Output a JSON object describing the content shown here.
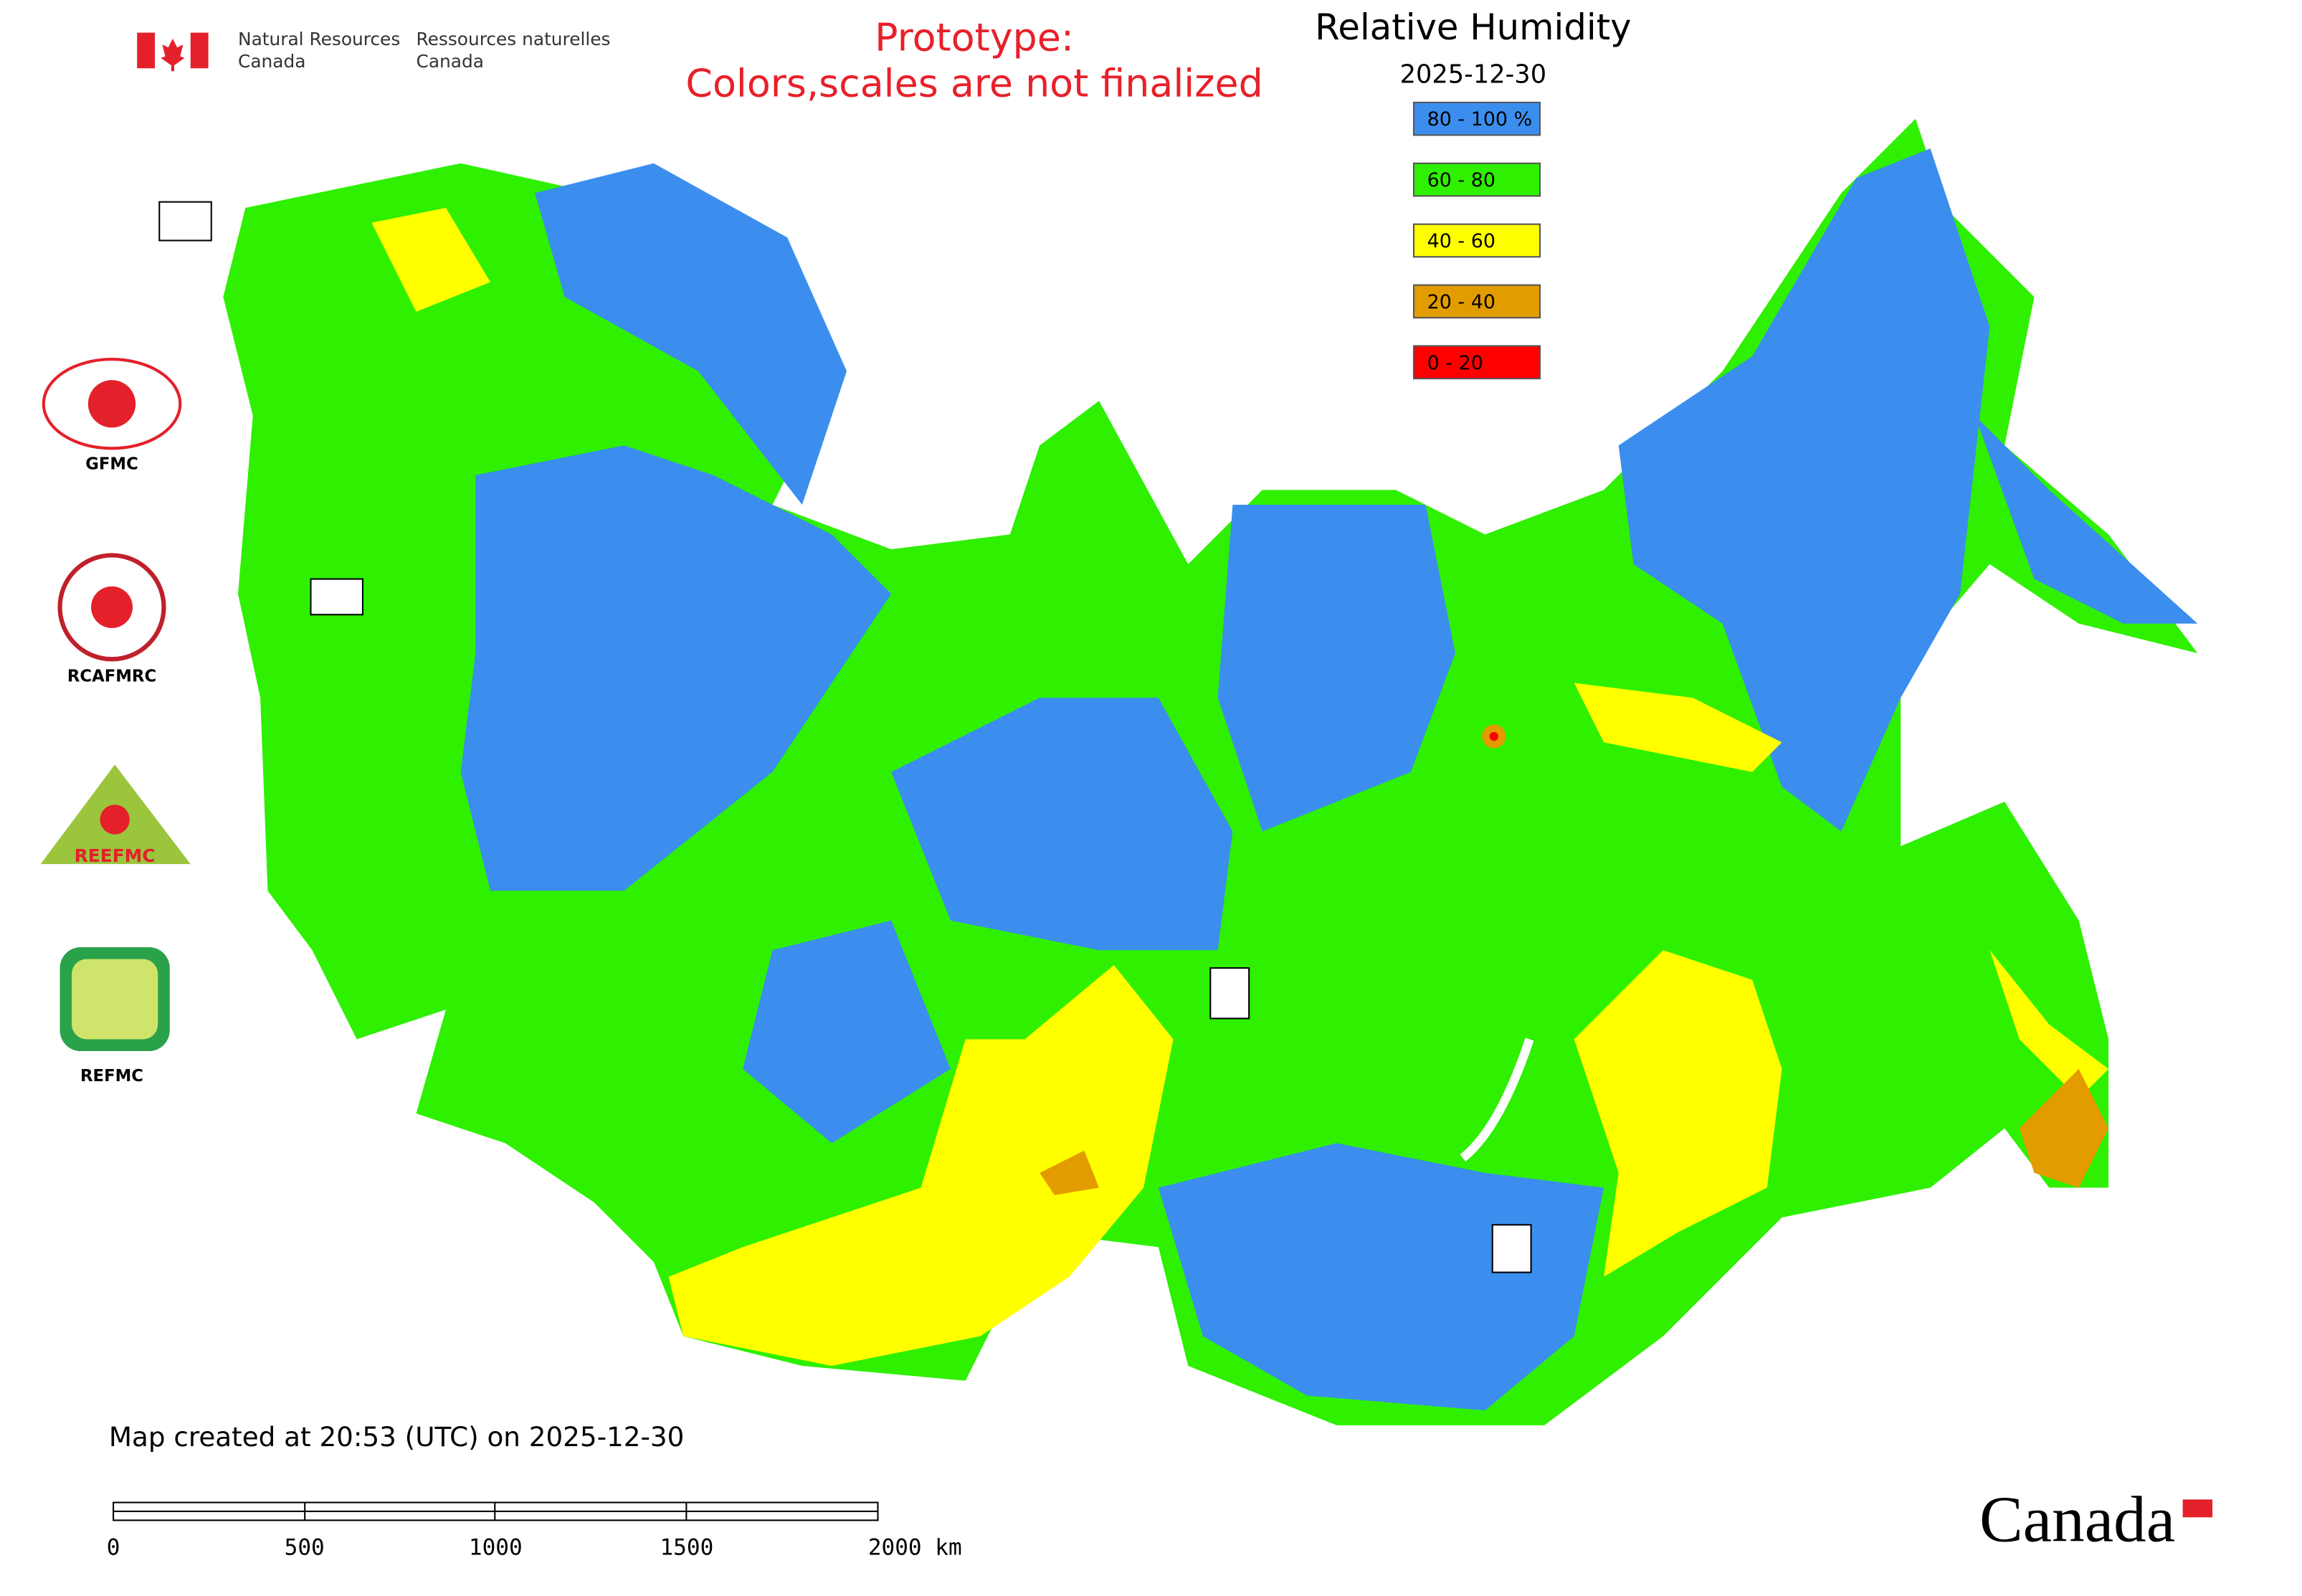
{
  "header": {
    "agency_en": [
      "Natural Resources",
      "Canada"
    ],
    "agency_fr": [
      "Ressources naturelles",
      "Canada"
    ]
  },
  "notice": {
    "line1": "Prototype:",
    "line2": "Colors,scales are not finalized"
  },
  "legend": {
    "title": "Relative Humidity",
    "date": "2025-12-30",
    "items": [
      {
        "label": "80 - 100 %",
        "color": "#3b8eed"
      },
      {
        "label": "60 - 80",
        "color": "#2ef000"
      },
      {
        "label": "40 - 60",
        "color": "#ffff00"
      },
      {
        "label": "20 - 40",
        "color": "#e39c00"
      },
      {
        "label": "0 - 20",
        "color": "#ff0000"
      }
    ]
  },
  "logos": {
    "gfmc": "GFMC",
    "rcafmrc": "RCAFMRC",
    "reefmc": "REEFMC",
    "refmc": "REFMC"
  },
  "footer": {
    "created": "Map created at 20:53 (UTC) on 2025-12-30",
    "scale_labels": [
      "0",
      "500",
      "1000",
      "1500",
      "2000 km"
    ],
    "wordmark": "Canada"
  }
}
